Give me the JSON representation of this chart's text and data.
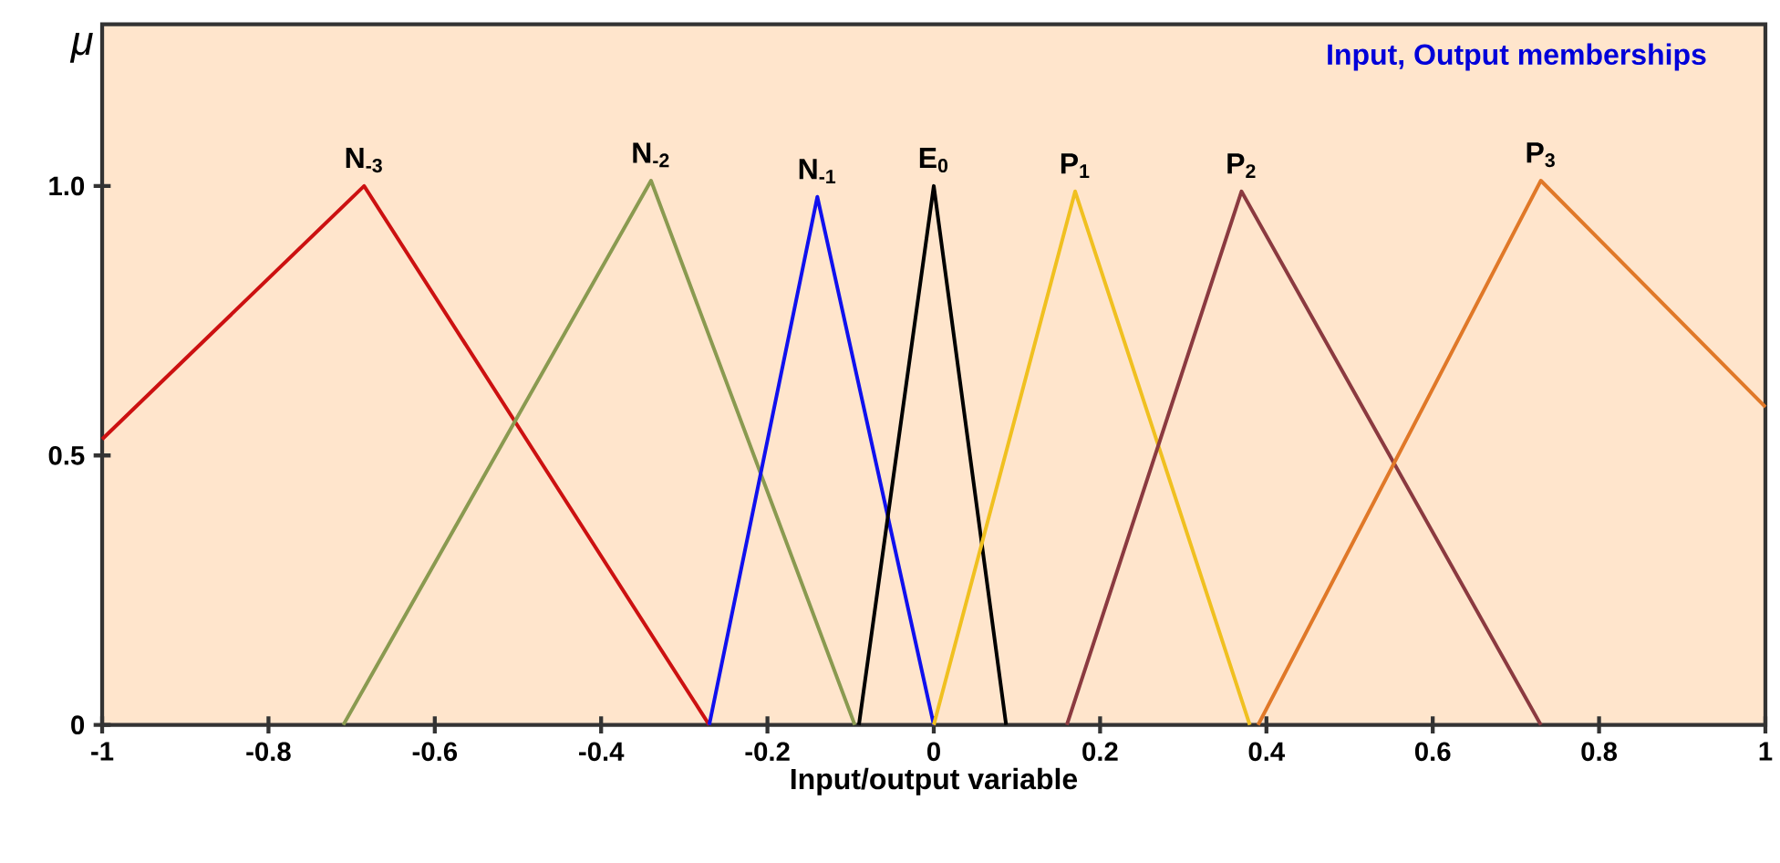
{
  "chart_data": {
    "type": "line",
    "ylabel": "μ",
    "xlabel": "Input/output variable",
    "annotations": [
      "Input, Output memberships"
    ],
    "xlim": [
      -1,
      1
    ],
    "ylim": [
      0,
      1.3
    ],
    "xticks": [
      -1,
      -0.8,
      -0.6,
      -0.4,
      -0.2,
      0,
      0.2,
      0.4,
      0.6,
      0.8,
      1
    ],
    "yticks": [
      0,
      0.5,
      {
        "value": 1,
        "label": "1.0"
      }
    ],
    "grid": false,
    "legend": false,
    "marker": "none",
    "line_style": "solid",
    "series": [
      {
        "name": "N$_{-3}$",
        "color": "#cc1111",
        "x": [
          -1,
          -0.685,
          -0.27
        ],
        "values": [
          0.53,
          1.0,
          0
        ]
      },
      {
        "name": "N$_{-2}$",
        "color": "#8a9a50",
        "x": [
          -0.71,
          -0.34,
          -0.095
        ],
        "values": [
          0,
          1.01,
          0
        ]
      },
      {
        "name": "N$_{-1}$",
        "color": "#1010ee",
        "x": [
          -0.27,
          -0.14,
          0
        ],
        "values": [
          0,
          0.98,
          0
        ]
      },
      {
        "name": "E$_{0}$",
        "color": "#000000",
        "x": [
          -0.09,
          0,
          0.087
        ],
        "values": [
          0,
          1.0,
          0
        ]
      },
      {
        "name": "P$_{1}$",
        "color": "#f0c020",
        "x": [
          0,
          0.17,
          0.38
        ],
        "values": [
          0,
          0.99,
          0
        ]
      },
      {
        "name": "P$_{2}$",
        "color": "#8b3a40",
        "x": [
          0.16,
          0.37,
          0.73
        ],
        "values": [
          0,
          0.99,
          0
        ]
      },
      {
        "name": "P$_{3}$",
        "color": "#e07828",
        "x": [
          0.39,
          0.73,
          1
        ],
        "values": [
          0,
          1.01,
          0.59
        ]
      }
    ]
  }
}
